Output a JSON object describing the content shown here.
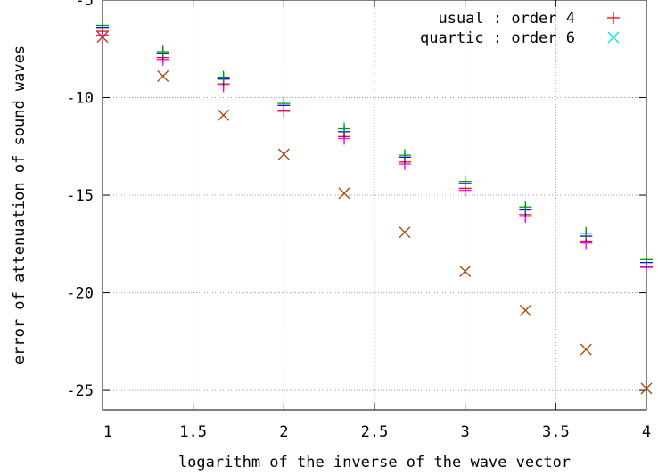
{
  "chart_data": {
    "type": "scatter",
    "title": "",
    "xlabel": "logarithm of the inverse of the wave vector",
    "ylabel": "error of attenuation of sound waves",
    "xlim": [
      1,
      4
    ],
    "ylim": [
      -26,
      -5
    ],
    "xticks": [
      "1",
      "1.5",
      "2",
      "2.5",
      "3",
      "3.5",
      "4"
    ],
    "yticks": [
      "-5",
      "-10",
      "-15",
      "-20",
      "-25"
    ],
    "grid": true,
    "legend_position": "top-right",
    "series": [
      {
        "name": "usual : order 4",
        "marker": "plus",
        "color": "#ff0000",
        "x": [
          1,
          1.333,
          1.667,
          2,
          2.333,
          2.667,
          3,
          3.333,
          3.667,
          4
        ],
        "y": [
          -6.6,
          -7.95,
          -9.3,
          -10.65,
          -12.0,
          -13.3,
          -14.65,
          -16.0,
          -17.35,
          -18.65
        ]
      },
      {
        "name": "quartic : order 6",
        "marker": "cross",
        "color": "#00e5e5",
        "x": [
          1,
          1.333,
          1.667,
          2,
          2.333,
          2.667,
          3,
          3.333,
          3.667,
          4
        ],
        "y": [
          -6.9,
          -8.9,
          -10.9,
          -12.9,
          -14.9,
          -16.9,
          -18.9,
          -20.9,
          -22.9,
          -24.9
        ]
      },
      {
        "name": "",
        "marker": "plus",
        "color": "#ff00ff",
        "x": [
          1,
          1.333,
          1.667,
          2,
          2.333,
          2.667,
          3,
          3.333,
          3.667,
          4
        ],
        "y": [
          -6.8,
          -8.05,
          -9.4,
          -10.7,
          -12.1,
          -13.4,
          -14.75,
          -16.1,
          -17.45,
          -18.7
        ]
      },
      {
        "name": "",
        "marker": "plus",
        "color": "#0000ff",
        "x": [
          1,
          1.333,
          1.667,
          2,
          2.333,
          2.667,
          3,
          3.333,
          3.667,
          4
        ],
        "y": [
          -6.4,
          -7.75,
          -9.05,
          -10.4,
          -11.75,
          -13.05,
          -14.4,
          -15.75,
          -17.1,
          -18.45
        ]
      },
      {
        "name": "",
        "marker": "plus",
        "color": "#009900",
        "x": [
          1,
          1.333,
          1.667,
          2,
          2.333,
          2.667,
          3,
          3.333,
          3.667,
          4
        ],
        "y": [
          -6.3,
          -7.65,
          -8.95,
          -10.3,
          -11.6,
          -12.95,
          -14.3,
          -15.6,
          -16.95,
          -18.3
        ]
      },
      {
        "name": "",
        "marker": "cross",
        "color": "#c04000",
        "x": [
          1,
          1.333,
          1.667,
          2,
          2.333,
          2.667,
          3,
          3.333,
          3.667,
          4
        ],
        "y": [
          -6.9,
          -8.9,
          -10.9,
          -12.9,
          -14.9,
          -16.9,
          -18.9,
          -20.9,
          -22.9,
          -24.9
        ]
      }
    ]
  }
}
